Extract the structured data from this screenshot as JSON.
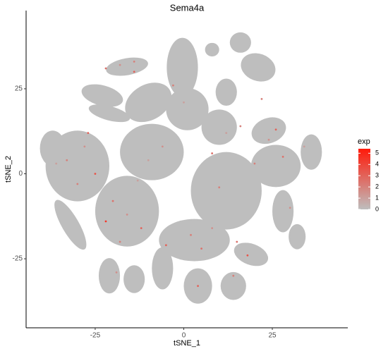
{
  "chart_data": {
    "type": "scatter",
    "title": "Sema4a",
    "x_label": "tSNE_1",
    "y_label": "tSNE_2",
    "xlim": [
      -44.5,
      46.3
    ],
    "ylim": [
      -45.3,
      48
    ],
    "xticks": [
      -25,
      0,
      25
    ],
    "yticks": [
      -25,
      0,
      25
    ],
    "legend_title": "exp",
    "color_low": "#bebebe",
    "color_high": "#ff1a0a",
    "colorlim": [
      0,
      5.4
    ],
    "colorticks": [
      0,
      1,
      2,
      3,
      4,
      5
    ],
    "clusters": {
      "x": [
        -0.4,
        -16,
        21,
        -10,
        -23,
        1,
        12,
        24,
        10,
        -9,
        -30,
        -37,
        12,
        26,
        36,
        -16,
        -32,
        3,
        -6,
        4,
        14,
        19,
        -14,
        -21,
        28,
        32,
        -21,
        16,
        8
      ],
      "y": [
        31.3,
        31.5,
        31.3,
        21,
        23,
        19,
        24,
        12.7,
        13.7,
        6.4,
        2.3,
        7.5,
        -5,
        2.3,
        6.4,
        -11,
        -15,
        -19.5,
        -27.8,
        -33,
        -33,
        -23.7,
        -31,
        -30,
        -11,
        -18.5,
        17.8,
        38.6,
        36.5
      ],
      "rx": [
        4.4,
        6,
        5,
        7,
        6,
        6,
        3,
        5,
        5,
        9,
        9,
        3.6,
        10,
        7,
        3,
        9,
        8,
        10,
        3,
        4,
        3.6,
        5,
        3,
        3,
        3,
        2.4,
        6,
        3,
        2
      ],
      "ry": [
        8.7,
        2.5,
        4,
        5.2,
        3,
        6.2,
        4,
        3.7,
        5.2,
        8.3,
        10.4,
        5.2,
        11.4,
        6.2,
        5.2,
        10.4,
        2.5,
        6.2,
        6.2,
        5.2,
        4.1,
        3.1,
        4.1,
        5.2,
        6.2,
        3.7,
        2.1,
        3,
        2
      ],
      "rotation": [
        0,
        -10,
        20,
        -30,
        15,
        0,
        0,
        -20,
        0,
        0,
        0,
        0,
        0,
        0,
        0,
        0,
        60,
        0,
        0,
        0,
        0,
        20,
        0,
        0,
        0,
        0,
        15,
        0,
        0
      ]
    },
    "points": {
      "x": [
        -22,
        -18,
        -14,
        -33,
        -28,
        -25,
        -30,
        -36,
        -20,
        -16,
        -12,
        -18,
        -22,
        -10,
        2,
        5,
        8,
        -5,
        14,
        18,
        22,
        26,
        24,
        16,
        12,
        8,
        20,
        30,
        -3,
        0,
        4,
        -14,
        -19,
        28,
        34,
        10,
        -6,
        15,
        -27,
        -13
      ],
      "y": [
        31,
        32,
        30,
        4,
        8,
        0,
        -3,
        3,
        -8,
        -12,
        -16,
        -20,
        -14,
        4,
        -18,
        -22,
        -16,
        -21,
        -30,
        -24,
        22,
        13,
        10,
        14,
        12,
        6,
        3,
        -10,
        26,
        21,
        -33,
        33,
        -29,
        5,
        8,
        -4,
        8,
        -20,
        12,
        -2
      ],
      "values": [
        2.5,
        1.5,
        3,
        2,
        1.5,
        3.5,
        2,
        1,
        2.5,
        1.5,
        3,
        2,
        4.5,
        1,
        2,
        2.5,
        1.5,
        3,
        2,
        3.5,
        2,
        3,
        1.5,
        2,
        1,
        2.5,
        2,
        1.5,
        2,
        1,
        3,
        2,
        1.5,
        2.5,
        1,
        2,
        1.5,
        2.5,
        3,
        1
      ]
    }
  }
}
